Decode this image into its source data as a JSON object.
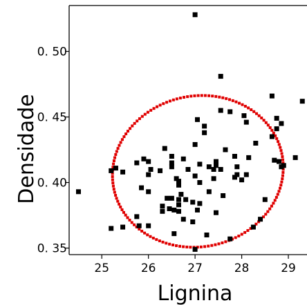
{
  "chart_data": {
    "type": "scatter",
    "title": "",
    "xlabel": "Lignina",
    "ylabel": "Densidade",
    "xlim": [
      24.3,
      29.4
    ],
    "ylim": [
      0.345,
      0.535
    ],
    "x_ticks": [
      25,
      26,
      27,
      28,
      29
    ],
    "x_tick_labels": [
      "25",
      "26",
      "27",
      "28",
      "29"
    ],
    "y_ticks": [
      0.35,
      0.4,
      0.45,
      0.5
    ],
    "y_tick_labels": [
      "0. 35",
      "0. 40",
      "0. 45",
      "0. 50"
    ],
    "grid": false,
    "legend": "none",
    "marker_color": "#000000",
    "ellipse_color": "#e00000",
    "points": [
      {
        "x": 27.0,
        "y": 0.528
      },
      {
        "x": 27.55,
        "y": 0.481
      },
      {
        "x": 28.65,
        "y": 0.466
      },
      {
        "x": 29.3,
        "y": 0.462
      },
      {
        "x": 27.55,
        "y": 0.455
      },
      {
        "x": 27.75,
        "y": 0.454
      },
      {
        "x": 28.05,
        "y": 0.451
      },
      {
        "x": 28.75,
        "y": 0.449
      },
      {
        "x": 27.05,
        "y": 0.448
      },
      {
        "x": 28.1,
        "y": 0.446
      },
      {
        "x": 28.85,
        "y": 0.445
      },
      {
        "x": 27.2,
        "y": 0.443
      },
      {
        "x": 28.75,
        "y": 0.441
      },
      {
        "x": 27.2,
        "y": 0.438
      },
      {
        "x": 28.65,
        "y": 0.435
      },
      {
        "x": 28.3,
        "y": 0.43
      },
      {
        "x": 27.0,
        "y": 0.429
      },
      {
        "x": 26.35,
        "y": 0.426
      },
      {
        "x": 27.65,
        "y": 0.425
      },
      {
        "x": 26.5,
        "y": 0.42
      },
      {
        "x": 27.85,
        "y": 0.42
      },
      {
        "x": 28.15,
        "y": 0.419
      },
      {
        "x": 29.15,
        "y": 0.419
      },
      {
        "x": 25.9,
        "y": 0.418
      },
      {
        "x": 26.75,
        "y": 0.418
      },
      {
        "x": 28.7,
        "y": 0.417
      },
      {
        "x": 26.0,
        "y": 0.416
      },
      {
        "x": 27.45,
        "y": 0.416
      },
      {
        "x": 28.8,
        "y": 0.416
      },
      {
        "x": 25.75,
        "y": 0.415
      },
      {
        "x": 26.5,
        "y": 0.415
      },
      {
        "x": 27.1,
        "y": 0.414
      },
      {
        "x": 27.45,
        "y": 0.413
      },
      {
        "x": 28.9,
        "y": 0.413
      },
      {
        "x": 26.5,
        "y": 0.412
      },
      {
        "x": 27.3,
        "y": 0.412
      },
      {
        "x": 27.9,
        "y": 0.412
      },
      {
        "x": 28.85,
        "y": 0.412
      },
      {
        "x": 25.3,
        "y": 0.411
      },
      {
        "x": 26.05,
        "y": 0.41
      },
      {
        "x": 26.85,
        "y": 0.41
      },
      {
        "x": 27.4,
        "y": 0.41
      },
      {
        "x": 27.55,
        "y": 0.41
      },
      {
        "x": 25.2,
        "y": 0.409
      },
      {
        "x": 26.25,
        "y": 0.409
      },
      {
        "x": 25.45,
        "y": 0.408
      },
      {
        "x": 26.0,
        "y": 0.406
      },
      {
        "x": 27.9,
        "y": 0.406
      },
      {
        "x": 28.1,
        "y": 0.406
      },
      {
        "x": 27.0,
        "y": 0.405
      },
      {
        "x": 27.85,
        "y": 0.404
      },
      {
        "x": 26.6,
        "y": 0.403
      },
      {
        "x": 27.4,
        "y": 0.403
      },
      {
        "x": 28.0,
        "y": 0.402
      },
      {
        "x": 26.65,
        "y": 0.401
      },
      {
        "x": 27.1,
        "y": 0.4
      },
      {
        "x": 26.65,
        "y": 0.398
      },
      {
        "x": 25.85,
        "y": 0.396
      },
      {
        "x": 24.5,
        "y": 0.393
      },
      {
        "x": 26.0,
        "y": 0.393
      },
      {
        "x": 27.3,
        "y": 0.393
      },
      {
        "x": 26.7,
        "y": 0.391
      },
      {
        "x": 27.6,
        "y": 0.39
      },
      {
        "x": 26.4,
        "y": 0.388
      },
      {
        "x": 26.5,
        "y": 0.388
      },
      {
        "x": 26.65,
        "y": 0.387
      },
      {
        "x": 26.8,
        "y": 0.387
      },
      {
        "x": 28.5,
        "y": 0.387
      },
      {
        "x": 26.95,
        "y": 0.385
      },
      {
        "x": 27.1,
        "y": 0.384
      },
      {
        "x": 26.65,
        "y": 0.383
      },
      {
        "x": 26.3,
        "y": 0.382
      },
      {
        "x": 26.45,
        "y": 0.38
      },
      {
        "x": 26.55,
        "y": 0.379
      },
      {
        "x": 27.05,
        "y": 0.379
      },
      {
        "x": 26.3,
        "y": 0.378
      },
      {
        "x": 26.65,
        "y": 0.378
      },
      {
        "x": 27.45,
        "y": 0.377
      },
      {
        "x": 25.75,
        "y": 0.374
      },
      {
        "x": 26.75,
        "y": 0.372
      },
      {
        "x": 28.4,
        "y": 0.372
      },
      {
        "x": 26.95,
        "y": 0.37
      },
      {
        "x": 25.8,
        "y": 0.367
      },
      {
        "x": 26.0,
        "y": 0.367
      },
      {
        "x": 25.2,
        "y": 0.365
      },
      {
        "x": 25.45,
        "y": 0.366
      },
      {
        "x": 28.25,
        "y": 0.366
      },
      {
        "x": 26.55,
        "y": 0.361
      },
      {
        "x": 27.25,
        "y": 0.36
      },
      {
        "x": 27.75,
        "y": 0.357
      },
      {
        "x": 27.0,
        "y": 0.349
      }
    ],
    "ellipse": {
      "cx": 27.06,
      "cy": 0.4085,
      "rx": 1.84,
      "ry": 0.0575,
      "angle_deg": 12
    }
  }
}
